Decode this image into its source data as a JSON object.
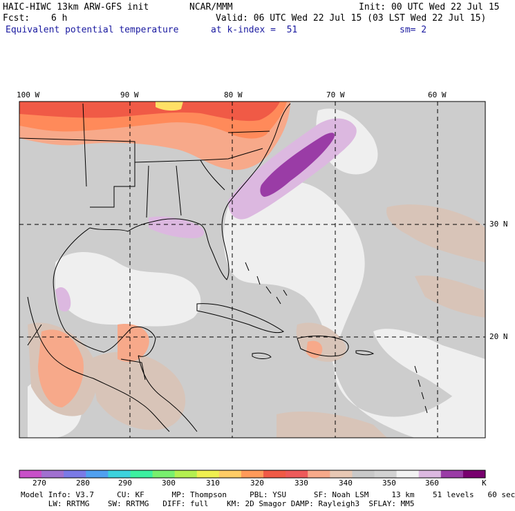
{
  "header": {
    "model_title": "HAIC-HIWC 13km ARW-GFS init",
    "org": "NCAR/MMM",
    "init": "Init: 00 UTC Wed 22 Jul 15",
    "fcst_label": "Fcst:",
    "fcst_value": "6 h",
    "valid": "Valid: 06 UTC Wed 22 Jul 15 (03 LST Wed 22 Jul 15)",
    "field": "Equivalent potential temperature",
    "level": "at k-index =  51",
    "smoothing": "sm= 2"
  },
  "map": {
    "lon_labels": [
      "100 W",
      "90 W",
      "80 W",
      "70 W",
      "60 W"
    ],
    "lat_labels": [
      "30 N",
      "20 N"
    ],
    "colors": {
      "ocean_gray": "#cdcdcd",
      "land_gray": "#c8c8c8",
      "high_white": "#f0f0f0",
      "tan": "#d8c4b8",
      "salmon": "#f7a98a",
      "orange": "#ff8a5a",
      "red_orange": "#f05a46",
      "yellow": "#ffe066",
      "lilac": "#dcb8e0",
      "purple": "#9a3ca6"
    }
  },
  "colorbar": {
    "tick_labels": [
      "270",
      "280",
      "290",
      "300",
      "310",
      "320",
      "330",
      "340",
      "350",
      "360"
    ],
    "unit": "K",
    "colors": [
      "#c850c8",
      "#a070d0",
      "#7a7ae6",
      "#50a0f0",
      "#3cd2dc",
      "#3cf0a0",
      "#78f06e",
      "#b4f050",
      "#f0f050",
      "#ffcc66",
      "#ff9a5a",
      "#f05a46",
      "#ee5a5a",
      "#f7a98a",
      "#e8c8b4",
      "#c8c8c8",
      "#d2d2d2",
      "#f2f2f2",
      "#dcb8e0",
      "#9a3ca6",
      "#78006e"
    ]
  },
  "footer": {
    "line1": "Model Info: V3.7     CU: KF      MP: Thompson     PBL: YSU      SF: Noah LSM     13 km    51 levels   60 sec",
    "line2": "      LW: RRTMG    SW: RRTMG   DIFF: full    KM: 2D Smagor DAMP: Rayleigh3  SFLAY: MM5"
  }
}
